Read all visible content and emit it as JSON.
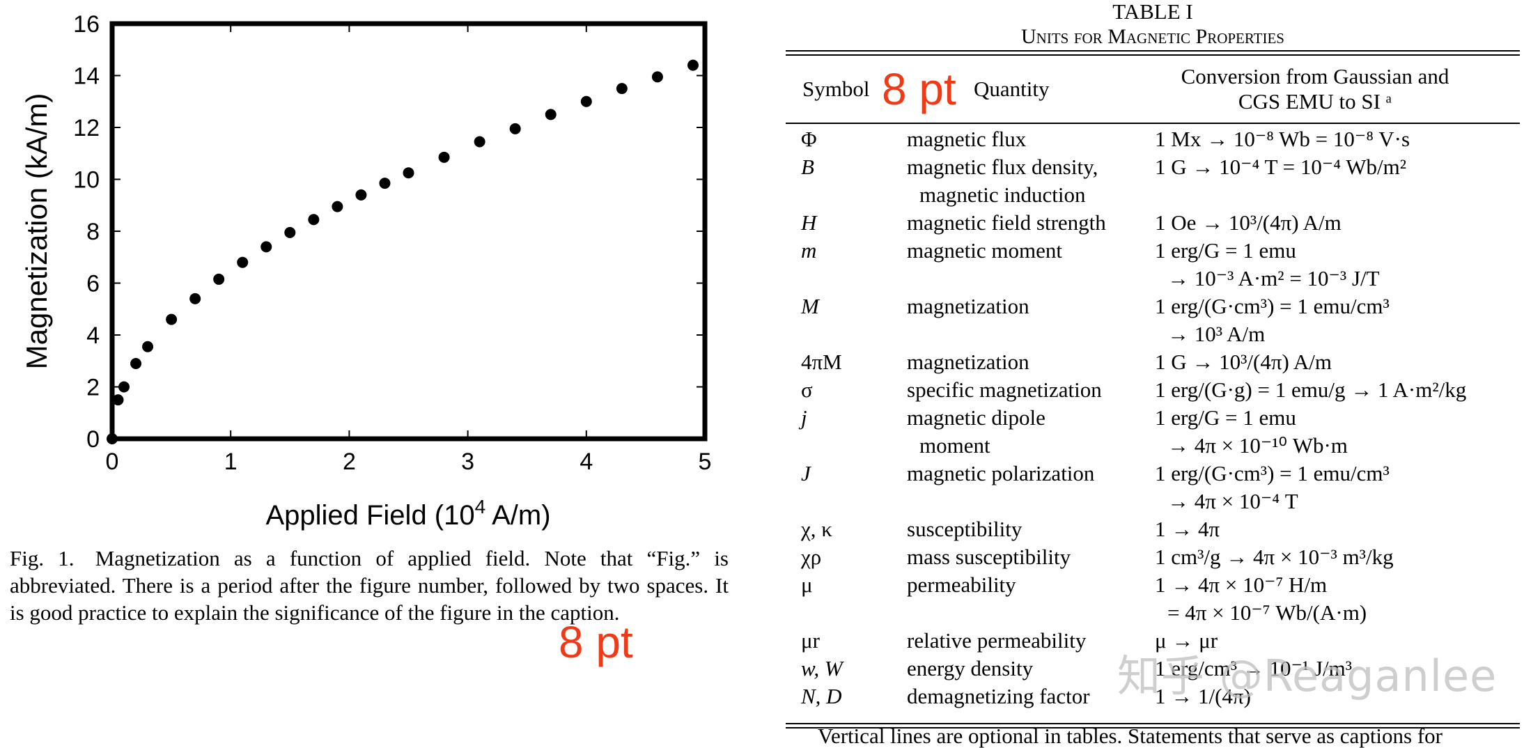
{
  "chart_data": {
    "type": "scatter",
    "title": "",
    "xlabel": "Applied Field (10",
    "xlabel_sup": "4",
    "xlabel_tail": " A/m)",
    "ylabel": "Magnetization (kA/m)",
    "xlim": [
      0,
      5
    ],
    "ylim": [
      0,
      16
    ],
    "xticks": [
      "0",
      "1",
      "2",
      "3",
      "4",
      "5"
    ],
    "yticks": [
      "0",
      "2",
      "4",
      "6",
      "8",
      "10",
      "12",
      "14",
      "16"
    ],
    "grid": false,
    "series": [
      {
        "name": "Magnetization",
        "x": [
          0.0,
          0.05,
          0.1,
          0.2,
          0.3,
          0.5,
          0.7,
          0.9,
          1.1,
          1.3,
          1.5,
          1.7,
          1.9,
          2.1,
          2.3,
          2.5,
          2.8,
          3.1,
          3.4,
          3.7,
          4.0,
          4.3,
          4.6,
          4.9
        ],
        "y": [
          0.0,
          1.5,
          2.0,
          2.9,
          3.55,
          4.6,
          5.4,
          6.15,
          6.8,
          7.4,
          7.95,
          8.45,
          8.95,
          9.4,
          9.85,
          10.25,
          10.85,
          11.45,
          11.95,
          12.5,
          13.0,
          13.5,
          13.95,
          14.4
        ]
      }
    ]
  },
  "figure": {
    "caption_label": "Fig. 1.",
    "caption_text": "Magnetization as a function of applied field. Note that “Fig.” is abbreviated. There is a period after the figure number, followed by two spaces. It is good practice to explain the significance of the figure in the caption.",
    "annotation": "8 pt"
  },
  "table": {
    "title": "TABLE I",
    "subtitle": "Units for Magnetic Properties",
    "annotation": "8 pt",
    "headers": {
      "symbol": "Symbol",
      "quantity": "Quantity",
      "conversion_line1": "Conversion from Gaussian and",
      "conversion_line2": "CGS EMU to SI ᵃ"
    },
    "rows": [
      {
        "symbol": "Φ",
        "quantity": [
          "magnetic flux"
        ],
        "conversion": [
          "1 Mx → 10⁻⁸ Wb = 10⁻⁸ V·s"
        ]
      },
      {
        "symbol": "B",
        "quantity": [
          "magnetic flux density,",
          "magnetic induction"
        ],
        "conversion": [
          "1 G → 10⁻⁴ T = 10⁻⁴ Wb/m²"
        ]
      },
      {
        "symbol": "H",
        "quantity": [
          "magnetic field strength"
        ],
        "conversion": [
          "1 Oe → 10³/(4π) A/m"
        ]
      },
      {
        "symbol": "m",
        "quantity": [
          "magnetic moment"
        ],
        "conversion": [
          "1 erg/G = 1 emu",
          "→ 10⁻³ A·m² = 10⁻³ J/T"
        ]
      },
      {
        "symbol": "M",
        "quantity": [
          "magnetization"
        ],
        "conversion": [
          "1 erg/(G·cm³) = 1 emu/cm³",
          "→ 10³ A/m"
        ]
      },
      {
        "symbol": "4πM",
        "quantity": [
          "magnetization"
        ],
        "conversion": [
          "1 G → 10³/(4π) A/m"
        ]
      },
      {
        "symbol": "σ",
        "quantity": [
          "specific magnetization"
        ],
        "conversion": [
          "1 erg/(G·g) = 1 emu/g → 1 A·m²/kg"
        ]
      },
      {
        "symbol": "j",
        "quantity": [
          "magnetic dipole",
          "moment"
        ],
        "conversion": [
          "1 erg/G = 1 emu",
          "→ 4π × 10⁻¹⁰ Wb·m"
        ]
      },
      {
        "symbol": "J",
        "quantity": [
          "magnetic polarization"
        ],
        "conversion": [
          "1 erg/(G·cm³) = 1 emu/cm³",
          "→ 4π × 10⁻⁴ T"
        ]
      },
      {
        "symbol": "χ, κ",
        "quantity": [
          "susceptibility"
        ],
        "conversion": [
          "1 → 4π"
        ]
      },
      {
        "symbol": "χρ",
        "quantity": [
          "mass susceptibility"
        ],
        "conversion": [
          "1 cm³/g → 4π × 10⁻³ m³/kg"
        ]
      },
      {
        "symbol": "μ",
        "quantity": [
          "permeability"
        ],
        "conversion": [
          "1 → 4π × 10⁻⁷ H/m",
          "= 4π × 10⁻⁷ Wb/(A·m)"
        ]
      },
      {
        "symbol": "μr",
        "quantity": [
          "relative permeability"
        ],
        "conversion": [
          "μ → μr"
        ]
      },
      {
        "symbol": "w, W",
        "quantity": [
          "energy density"
        ],
        "conversion": [
          "1 erg/cm³ → 10⁻¹ J/m³"
        ]
      },
      {
        "symbol": "N, D",
        "quantity": [
          "demagnetizing factor"
        ],
        "conversion": [
          "1 → 1/(4π)"
        ]
      }
    ],
    "footnote": "Vertical lines are optional in tables. Statements that serve as captions for"
  },
  "watermark": "知乎 @Reaganlee",
  "colors": {
    "annotation": "#f03a17",
    "ink": "#000000",
    "watermark": "#bebebe"
  }
}
